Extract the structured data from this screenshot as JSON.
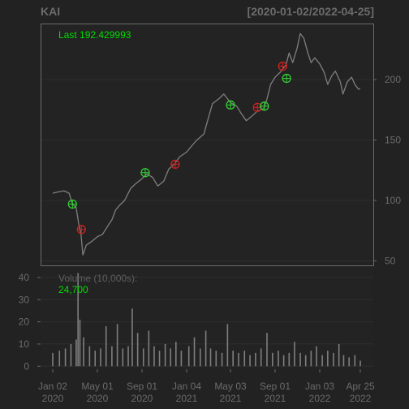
{
  "header": {
    "symbol": "KAI",
    "date_range": "[2020-01-02/2022-04-25]"
  },
  "price_panel": {
    "last_label": "Last 192.429993"
  },
  "volume_panel": {
    "label": "Volume (10,000s):",
    "last_value": "24,700"
  },
  "colors": {
    "background": "#222222",
    "panel_border": "#6b6b6b",
    "price_line": "#7f7f7f",
    "volume_bars": "#7f7f7f",
    "buy_marker": "#33cc33",
    "sell_marker": "#cc2222",
    "label_green": "#00dd00",
    "axis_text": "#6b6b6b"
  },
  "chart_data": {
    "type": "line",
    "title": "KAI",
    "subtitle": "[2020-01-02/2022-04-25]",
    "x_tick_labels": [
      {
        "date": "2020-01-02",
        "line1": "Jan 02",
        "line2": "2020"
      },
      {
        "date": "2020-05-01",
        "line1": "May 01",
        "line2": "2020"
      },
      {
        "date": "2020-09-01",
        "line1": "Sep 01",
        "line2": "2020"
      },
      {
        "date": "2021-01-04",
        "line1": "Jan 04",
        "line2": "2021"
      },
      {
        "date": "2021-05-03",
        "line1": "May 03",
        "line2": "2021"
      },
      {
        "date": "2021-09-01",
        "line1": "Sep 01",
        "line2": "2021"
      },
      {
        "date": "2022-01-03",
        "line1": "Jan 03",
        "line2": "2022"
      },
      {
        "date": "2022-04-25",
        "line1": "Apr 25",
        "line2": "2022"
      }
    ],
    "price": {
      "y_ticks": [
        50,
        100,
        150,
        200
      ],
      "ylim": [
        47,
        245
      ],
      "last": 192.429993,
      "series": [
        {
          "x": "2020-01-02",
          "y": 106
        },
        {
          "x": "2020-01-15",
          "y": 107
        },
        {
          "x": "2020-02-01",
          "y": 108
        },
        {
          "x": "2020-02-15",
          "y": 106
        },
        {
          "x": "2020-02-24",
          "y": 97
        },
        {
          "x": "2020-03-05",
          "y": 94
        },
        {
          "x": "2020-03-12",
          "y": 80
        },
        {
          "x": "2020-03-18",
          "y": 72
        },
        {
          "x": "2020-03-23",
          "y": 55
        },
        {
          "x": "2020-04-01",
          "y": 63
        },
        {
          "x": "2020-04-15",
          "y": 66
        },
        {
          "x": "2020-05-01",
          "y": 70
        },
        {
          "x": "2020-05-15",
          "y": 72
        },
        {
          "x": "2020-06-01",
          "y": 80
        },
        {
          "x": "2020-06-10",
          "y": 84
        },
        {
          "x": "2020-06-20",
          "y": 92
        },
        {
          "x": "2020-07-01",
          "y": 96
        },
        {
          "x": "2020-07-15",
          "y": 100
        },
        {
          "x": "2020-08-01",
          "y": 110
        },
        {
          "x": "2020-08-15",
          "y": 114
        },
        {
          "x": "2020-09-01",
          "y": 118
        },
        {
          "x": "2020-09-15",
          "y": 122
        },
        {
          "x": "2020-10-01",
          "y": 119
        },
        {
          "x": "2020-10-15",
          "y": 112
        },
        {
          "x": "2020-11-01",
          "y": 116
        },
        {
          "x": "2020-11-15",
          "y": 126
        },
        {
          "x": "2020-12-01",
          "y": 130
        },
        {
          "x": "2020-12-15",
          "y": 136
        },
        {
          "x": "2021-01-04",
          "y": 140
        },
        {
          "x": "2021-01-20",
          "y": 146
        },
        {
          "x": "2021-02-01",
          "y": 150
        },
        {
          "x": "2021-02-20",
          "y": 155
        },
        {
          "x": "2021-03-01",
          "y": 165
        },
        {
          "x": "2021-03-15",
          "y": 180
        },
        {
          "x": "2021-04-01",
          "y": 184
        },
        {
          "x": "2021-04-15",
          "y": 188
        },
        {
          "x": "2021-05-03",
          "y": 181
        },
        {
          "x": "2021-05-20",
          "y": 178
        },
        {
          "x": "2021-06-01",
          "y": 172
        },
        {
          "x": "2021-06-15",
          "y": 166
        },
        {
          "x": "2021-07-01",
          "y": 170
        },
        {
          "x": "2021-07-15",
          "y": 174
        },
        {
          "x": "2021-08-01",
          "y": 176
        },
        {
          "x": "2021-08-10",
          "y": 184
        },
        {
          "x": "2021-08-20",
          "y": 196
        },
        {
          "x": "2021-09-01",
          "y": 202
        },
        {
          "x": "2021-09-15",
          "y": 206
        },
        {
          "x": "2021-10-01",
          "y": 212
        },
        {
          "x": "2021-10-10",
          "y": 222
        },
        {
          "x": "2021-10-20",
          "y": 214
        },
        {
          "x": "2021-11-01",
          "y": 226
        },
        {
          "x": "2021-11-10",
          "y": 238
        },
        {
          "x": "2021-11-20",
          "y": 234
        },
        {
          "x": "2021-12-01",
          "y": 222
        },
        {
          "x": "2021-12-10",
          "y": 214
        },
        {
          "x": "2021-12-20",
          "y": 218
        },
        {
          "x": "2022-01-03",
          "y": 213
        },
        {
          "x": "2022-01-15",
          "y": 206
        },
        {
          "x": "2022-01-25",
          "y": 196
        },
        {
          "x": "2022-02-05",
          "y": 203
        },
        {
          "x": "2022-02-15",
          "y": 207
        },
        {
          "x": "2022-03-01",
          "y": 198
        },
        {
          "x": "2022-03-08",
          "y": 188
        },
        {
          "x": "2022-03-20",
          "y": 198
        },
        {
          "x": "2022-04-01",
          "y": 202
        },
        {
          "x": "2022-04-10",
          "y": 196
        },
        {
          "x": "2022-04-20",
          "y": 192
        },
        {
          "x": "2022-04-25",
          "y": 192.43
        }
      ],
      "buy_markers": [
        {
          "x": "2020-02-24",
          "y": 97
        },
        {
          "x": "2020-09-10",
          "y": 123
        },
        {
          "x": "2021-05-03",
          "y": 179
        },
        {
          "x": "2021-08-03",
          "y": 178
        },
        {
          "x": "2021-10-03",
          "y": 201
        }
      ],
      "sell_markers": [
        {
          "x": "2020-03-19",
          "y": 76
        },
        {
          "x": "2020-12-03",
          "y": 130
        },
        {
          "x": "2021-07-15",
          "y": 177
        },
        {
          "x": "2021-09-22",
          "y": 211
        }
      ]
    },
    "volume": {
      "unit": "10,000s",
      "y_ticks": [
        0,
        10,
        20,
        30,
        40
      ],
      "ylim": [
        -1,
        44
      ],
      "last": 24700,
      "series": [
        {
          "x": "2020-01-02",
          "y": 6
        },
        {
          "x": "2020-01-20",
          "y": 7
        },
        {
          "x": "2020-02-05",
          "y": 8
        },
        {
          "x": "2020-02-20",
          "y": 10
        },
        {
          "x": "2020-03-05",
          "y": 12
        },
        {
          "x": "2020-03-10",
          "y": 42
        },
        {
          "x": "2020-03-15",
          "y": 21
        },
        {
          "x": "2020-03-25",
          "y": 13
        },
        {
          "x": "2020-04-10",
          "y": 9
        },
        {
          "x": "2020-04-25",
          "y": 7
        },
        {
          "x": "2020-05-10",
          "y": 8
        },
        {
          "x": "2020-05-25",
          "y": 18
        },
        {
          "x": "2020-06-10",
          "y": 9
        },
        {
          "x": "2020-06-25",
          "y": 19
        },
        {
          "x": "2020-07-10",
          "y": 8
        },
        {
          "x": "2020-07-25",
          "y": 9
        },
        {
          "x": "2020-08-05",
          "y": 26
        },
        {
          "x": "2020-08-20",
          "y": 15
        },
        {
          "x": "2020-09-05",
          "y": 8
        },
        {
          "x": "2020-09-20",
          "y": 16
        },
        {
          "x": "2020-10-05",
          "y": 9
        },
        {
          "x": "2020-10-20",
          "y": 7
        },
        {
          "x": "2020-11-05",
          "y": 10
        },
        {
          "x": "2020-11-20",
          "y": 8
        },
        {
          "x": "2020-12-05",
          "y": 11
        },
        {
          "x": "2020-12-20",
          "y": 7
        },
        {
          "x": "2021-01-10",
          "y": 9
        },
        {
          "x": "2021-01-25",
          "y": 13
        },
        {
          "x": "2021-02-10",
          "y": 8
        },
        {
          "x": "2021-02-25",
          "y": 16
        },
        {
          "x": "2021-03-10",
          "y": 8
        },
        {
          "x": "2021-03-25",
          "y": 7
        },
        {
          "x": "2021-04-10",
          "y": 6
        },
        {
          "x": "2021-04-25",
          "y": 19
        },
        {
          "x": "2021-05-10",
          "y": 7
        },
        {
          "x": "2021-05-25",
          "y": 6
        },
        {
          "x": "2021-06-10",
          "y": 7
        },
        {
          "x": "2021-06-25",
          "y": 5
        },
        {
          "x": "2021-07-10",
          "y": 6
        },
        {
          "x": "2021-07-25",
          "y": 8
        },
        {
          "x": "2021-08-10",
          "y": 15
        },
        {
          "x": "2021-08-25",
          "y": 6
        },
        {
          "x": "2021-09-10",
          "y": 7
        },
        {
          "x": "2021-09-25",
          "y": 5
        },
        {
          "x": "2021-10-10",
          "y": 6
        },
        {
          "x": "2021-10-25",
          "y": 11
        },
        {
          "x": "2021-11-10",
          "y": 6
        },
        {
          "x": "2021-11-25",
          "y": 5
        },
        {
          "x": "2021-12-10",
          "y": 7
        },
        {
          "x": "2021-12-25",
          "y": 9
        },
        {
          "x": "2022-01-10",
          "y": 5
        },
        {
          "x": "2022-01-25",
          "y": 7
        },
        {
          "x": "2022-02-10",
          "y": 6
        },
        {
          "x": "2022-02-25",
          "y": 10
        },
        {
          "x": "2022-03-10",
          "y": 5
        },
        {
          "x": "2022-03-25",
          "y": 4
        },
        {
          "x": "2022-04-10",
          "y": 5
        },
        {
          "x": "2022-04-25",
          "y": 2.47
        }
      ]
    }
  }
}
